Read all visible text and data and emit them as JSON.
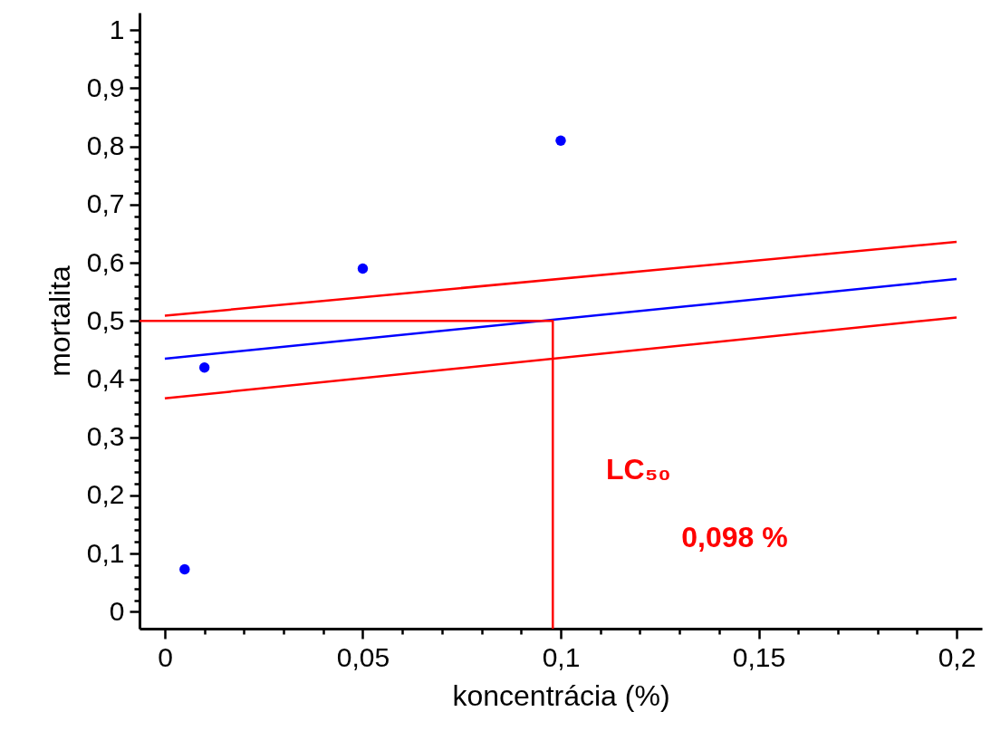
{
  "chart_data": {
    "type": "scatter",
    "xlabel": "koncentrácia (%)",
    "ylabel": "mortalita",
    "xlim": [
      -0.0064,
      0.2064
    ],
    "ylim": [
      -0.029,
      1.03
    ],
    "xticks": [
      0,
      {
        "value": 0.01,
        "label": null
      },
      {
        "value": 0.02,
        "label": null
      },
      {
        "value": 0.03,
        "label": null
      },
      {
        "value": 0.04,
        "label": null
      },
      {
        "value": 0.05,
        "label": "0,05"
      },
      {
        "value": 0.06,
        "label": null
      },
      {
        "value": 0.07,
        "label": null
      },
      {
        "value": 0.08,
        "label": null
      },
      {
        "value": 0.09,
        "label": null
      },
      {
        "value": 0.1,
        "label": "0,1"
      },
      {
        "value": 0.11,
        "label": null
      },
      {
        "value": 0.12,
        "label": null
      },
      {
        "value": 0.13,
        "label": null
      },
      {
        "value": 0.14,
        "label": null
      },
      {
        "value": 0.15,
        "label": "0,15"
      },
      {
        "value": 0.16,
        "label": null
      },
      {
        "value": 0.17,
        "label": null
      },
      {
        "value": 0.18,
        "label": null
      },
      {
        "value": 0.19,
        "label": null
      },
      {
        "value": 0.2,
        "label": "0,2"
      }
    ],
    "yticks": [
      0,
      {
        "value": 0.02,
        "label": null
      },
      {
        "value": 0.04,
        "label": null
      },
      {
        "value": 0.06,
        "label": null
      },
      {
        "value": 0.08,
        "label": null
      },
      {
        "value": 0.1,
        "label": "0,1"
      },
      {
        "value": 0.12,
        "label": null
      },
      {
        "value": 0.14,
        "label": null
      },
      {
        "value": 0.16,
        "label": null
      },
      {
        "value": 0.18,
        "label": null
      },
      {
        "value": 0.2,
        "label": "0,2"
      },
      {
        "value": 0.22,
        "label": null
      },
      {
        "value": 0.24,
        "label": null
      },
      {
        "value": 0.26,
        "label": null
      },
      {
        "value": 0.28,
        "label": null
      },
      {
        "value": 0.3,
        "label": "0,3"
      },
      {
        "value": 0.32,
        "label": null
      },
      {
        "value": 0.34,
        "label": null
      },
      {
        "value": 0.36,
        "label": null
      },
      {
        "value": 0.38,
        "label": null
      },
      {
        "value": 0.4,
        "label": "0,4"
      },
      {
        "value": 0.42,
        "label": null
      },
      {
        "value": 0.44,
        "label": null
      },
      {
        "value": 0.46,
        "label": null
      },
      {
        "value": 0.48,
        "label": null
      },
      {
        "value": 0.5,
        "label": "0,5"
      },
      {
        "value": 0.52,
        "label": null
      },
      {
        "value": 0.54,
        "label": null
      },
      {
        "value": 0.56,
        "label": null
      },
      {
        "value": 0.58,
        "label": null
      },
      {
        "value": 0.6,
        "label": "0,6"
      },
      {
        "value": 0.62,
        "label": null
      },
      {
        "value": 0.64,
        "label": null
      },
      {
        "value": 0.66,
        "label": null
      },
      {
        "value": 0.68,
        "label": null
      },
      {
        "value": 0.7,
        "label": "0,7"
      },
      {
        "value": 0.72,
        "label": null
      },
      {
        "value": 0.74,
        "label": null
      },
      {
        "value": 0.76,
        "label": null
      },
      {
        "value": 0.78,
        "label": null
      },
      {
        "value": 0.8,
        "label": "0,8"
      },
      {
        "value": 0.82,
        "label": null
      },
      {
        "value": 0.84,
        "label": null
      },
      {
        "value": 0.86,
        "label": null
      },
      {
        "value": 0.88,
        "label": null
      },
      {
        "value": 0.9,
        "label": "0,9"
      },
      {
        "value": 0.92,
        "label": null
      },
      {
        "value": 0.94,
        "label": null
      },
      {
        "value": 0.96,
        "label": null
      },
      {
        "value": 0.98,
        "label": null
      },
      1
    ],
    "grid": false,
    "series": [
      {
        "marker": "circle",
        "color": "#0000ff",
        "x": [
          0.005,
          0.01,
          0.05,
          0.1
        ],
        "values": [
          0.073,
          0.42,
          0.59,
          0.81
        ]
      },
      {
        "type": "line",
        "color": "#0000ff",
        "x": [
          0,
          0.2
        ],
        "values": [
          0.435,
          0.572
        ]
      },
      {
        "type": "line",
        "color": "#ff0000",
        "x": [
          0,
          0.2
        ],
        "values": [
          0.509,
          0.636
        ]
      },
      {
        "type": "line",
        "color": "#ff0000",
        "x": [
          0,
          0.2
        ],
        "values": [
          0.367,
          0.506
        ]
      },
      {
        "type": "line",
        "color": "#ff0000",
        "x": [
          -0.0064,
          0.098,
          0.098
        ],
        "values": [
          0.5,
          0.5,
          -0.029
        ]
      }
    ],
    "annotations": [
      "LC₅₀",
      "0,098 %"
    ]
  }
}
